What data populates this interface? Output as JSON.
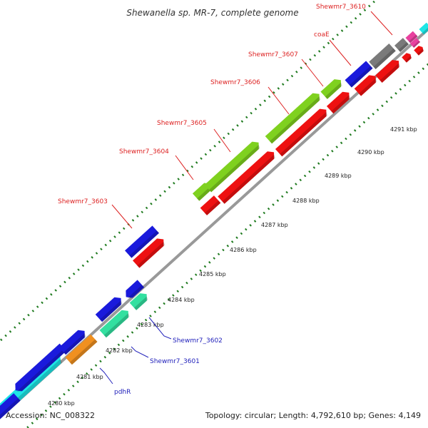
{
  "title": "Shewanella sp. MR-7, complete genome",
  "footer": {
    "accession": "Accession: NC_008322",
    "summary": "Topology: circular; Length: 4,792,610 bp; Genes: 4,149"
  },
  "colors": {
    "backbone": "#999999",
    "tick": "#1e7a1e",
    "top_label": "#dd2222",
    "bottom_label": "#2222bb",
    "blue_gene": "#1a1adc",
    "red_gene": "#ee1111",
    "green_gene": "#7fd11f",
    "cyan_gene": "#1fe6e6",
    "mint_gene": "#33e0a0",
    "orange_gene": "#f09020",
    "gray_gene": "#7a7a7a",
    "pink_gene": "#e8409e"
  },
  "kbp_labels": [
    "4280 kbp",
    "4281 kbp",
    "4282 kbp",
    "4283 kbp",
    "4284 kbp",
    "4285 kbp",
    "4286 kbp",
    "4287 kbp",
    "4288 kbp",
    "4289 kbp",
    "4290 kbp",
    "4291 kbp"
  ],
  "gene_labels": {
    "top": [
      "Shewmr7_3603",
      "Shewmr7_3604",
      "Shewmr7_3605",
      "Shewmr7_3606",
      "Shewmr7_3607",
      "coaE",
      "Shewmr7_3610"
    ],
    "bottom": [
      "pdhR",
      "Shewmr7_3601",
      "Shewmr7_3602"
    ]
  }
}
